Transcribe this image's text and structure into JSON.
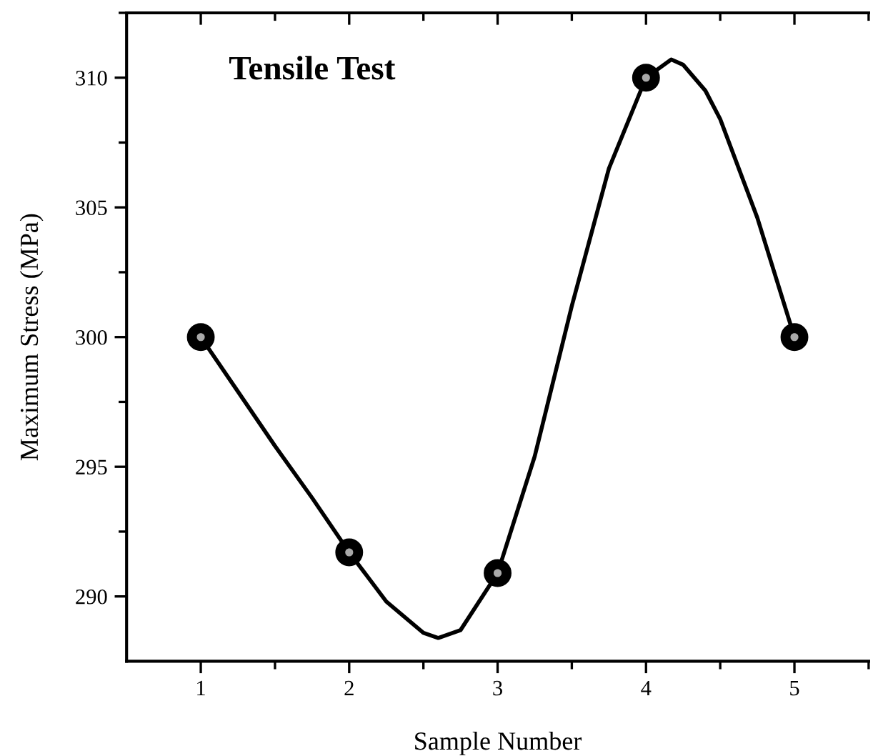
{
  "chart_data": {
    "type": "scatter",
    "title": "Tensile Test",
    "xlabel": "Sample Number",
    "ylabel": "Maximum Stress (MPa)",
    "x": [
      1,
      2,
      3,
      4,
      5
    ],
    "series": [
      {
        "type": "line",
        "color": "#000000",
        "x": [
          1,
          1.25,
          1.5,
          1.75,
          2,
          2.25,
          2.5,
          2.6,
          2.75,
          3,
          3.25,
          3.5,
          3.75,
          4,
          4.17,
          4.25,
          4.4,
          4.5,
          4.75,
          5
        ],
        "values": [
          300,
          297.9,
          295.8,
          293.8,
          291.7,
          289.8,
          288.6,
          288.4,
          288.7,
          290.9,
          295.4,
          301.2,
          306.5,
          310,
          310.7,
          310.5,
          309.5,
          308.4,
          304.6,
          300
        ]
      },
      {
        "color": "#000000",
        "values": [
          300,
          291.7,
          290.9,
          310,
          300
        ]
      }
    ],
    "xlim": [
      0.5,
      5.5
    ],
    "xticks": [
      1,
      2,
      3,
      4,
      5
    ],
    "ylim": [
      287.5,
      312.5
    ],
    "yticks": [
      290,
      295,
      300,
      305,
      310
    ],
    "line_style": "solid",
    "grid": false,
    "legend": false
  }
}
